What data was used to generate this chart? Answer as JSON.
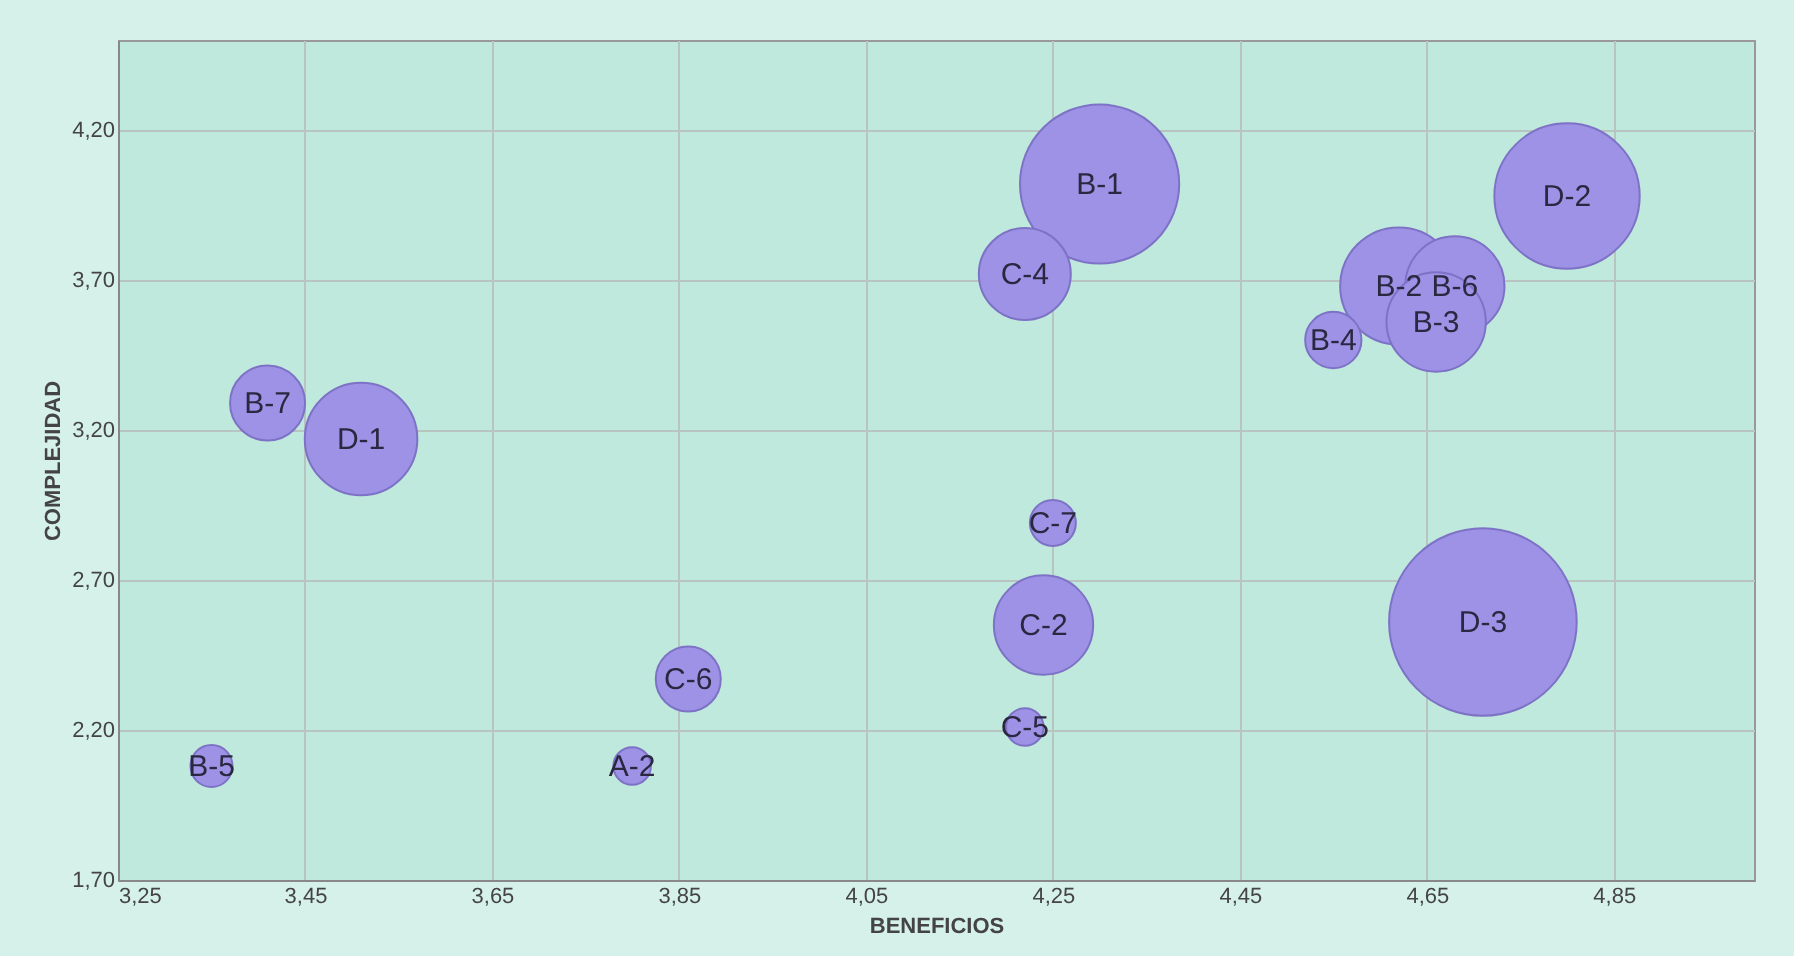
{
  "chart_data": {
    "type": "bubble",
    "xlabel": "BENEFICIOS",
    "ylabel": "COMPLEJIDAD",
    "x": [
      3.41,
      3.51,
      3.35,
      3.8,
      3.86,
      4.3,
      4.22,
      4.25,
      4.24,
      4.22,
      4.8,
      4.62,
      4.68,
      4.66,
      4.55,
      4.71
    ],
    "values": [
      3.29,
      3.17,
      2.08,
      2.08,
      2.37,
      4.02,
      3.72,
      2.89,
      2.55,
      2.21,
      3.98,
      3.68,
      3.68,
      3.56,
      3.5,
      2.56
    ],
    "sizes": [
      0.16,
      0.36,
      0.05,
      0.04,
      0.12,
      0.72,
      0.24,
      0.06,
      0.28,
      0.04,
      0.6,
      0.39,
      0.28,
      0.28,
      0.09,
      1
    ],
    "color": "#9d92e6",
    "annotations": [
      {
        "text": "B-7",
        "x": 3.41,
        "y": 3.29
      },
      {
        "text": "D-1",
        "x": 3.51,
        "y": 3.17
      },
      {
        "text": "B-5",
        "x": 3.35,
        "y": 2.08
      },
      {
        "text": "A-2",
        "x": 3.8,
        "y": 2.08
      },
      {
        "text": "C-6",
        "x": 3.86,
        "y": 2.37
      },
      {
        "text": "B-1",
        "x": 4.3,
        "y": 4.02
      },
      {
        "text": "C-4",
        "x": 4.22,
        "y": 3.72
      },
      {
        "text": "C-7",
        "x": 4.25,
        "y": 2.89
      },
      {
        "text": "C-2",
        "x": 4.24,
        "y": 2.55
      },
      {
        "text": "C-5",
        "x": 4.22,
        "y": 2.21
      },
      {
        "text": "D-2",
        "x": 4.8,
        "y": 3.98
      },
      {
        "text": "B-2",
        "x": 4.62,
        "y": 3.68
      },
      {
        "text": "B-6",
        "x": 4.68,
        "y": 3.68
      },
      {
        "text": "B-3",
        "x": 4.66,
        "y": 3.56
      },
      {
        "text": "B-4",
        "x": 4.55,
        "y": 3.5
      },
      {
        "text": "D-3",
        "x": 4.71,
        "y": 2.56
      }
    ],
    "xlim": [
      3.25,
      5.0
    ],
    "xticks": [
      {
        "value": 3.25,
        "label": "3,25"
      },
      {
        "value": 3.45,
        "label": "3,45"
      },
      {
        "value": 3.65,
        "label": "3,65"
      },
      {
        "value": 3.85,
        "label": "3,85"
      },
      {
        "value": 4.05,
        "label": "4,05"
      },
      {
        "value": 4.25,
        "label": "4,25"
      },
      {
        "value": 4.45,
        "label": "4,45"
      },
      {
        "value": 4.65,
        "label": "4,65"
      },
      {
        "value": 4.85,
        "label": "4,85"
      }
    ],
    "ylim": [
      1.7,
      4.5
    ],
    "yticks": [
      {
        "value": 1.7,
        "label": "1,70"
      },
      {
        "value": 2.2,
        "label": "2,20"
      },
      {
        "value": 2.7,
        "label": "2,70"
      },
      {
        "value": 3.2,
        "label": "3,20"
      },
      {
        "value": 3.7,
        "label": "3,70"
      },
      {
        "value": 4.2,
        "label": "4,20"
      }
    ],
    "grid": true
  }
}
